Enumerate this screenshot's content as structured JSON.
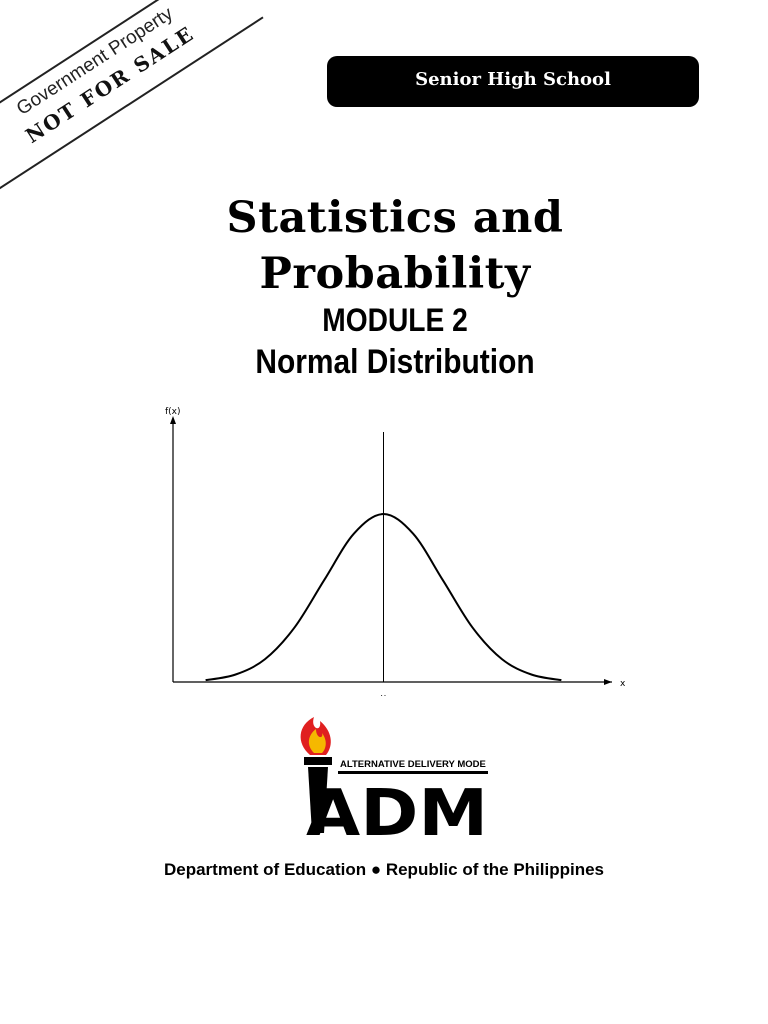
{
  "watermark": {
    "line1": "Government Property",
    "line2": "NOT FOR SALE"
  },
  "header": {
    "level_label": "Senior High School"
  },
  "cover": {
    "title_line1": "Statistics and",
    "title_line2": "Probability",
    "module": "MODULE 2",
    "subtitle": "Normal Distribution"
  },
  "chart_data": {
    "type": "line",
    "ylabel": "f(x)",
    "xlabel": "x",
    "center_tick_label": "μ",
    "x": [
      -3,
      -2.5,
      -2,
      -1.5,
      -1,
      -0.5,
      0,
      0.5,
      1,
      1.5,
      2,
      2.5,
      3
    ],
    "series": [
      {
        "values": [
          0.0044,
          0.0175,
          0.054,
          0.1295,
          0.242,
          0.3521,
          0.3989,
          0.3521,
          0.242,
          0.1295,
          0.054,
          0.0175,
          0.0044
        ]
      }
    ],
    "grid": false,
    "colors": {
      "curve": "#000000",
      "axis": "#000000"
    }
  },
  "logo": {
    "tagline": "ALTERNATIVE DELIVERY MODE",
    "wordmark": "ADM",
    "colors": {
      "flame_outer": "#e02020",
      "flame_inner": "#f5b800",
      "ink": "#000000"
    }
  },
  "footer": {
    "text": "Department of Education ● Republic of the Philippines"
  }
}
